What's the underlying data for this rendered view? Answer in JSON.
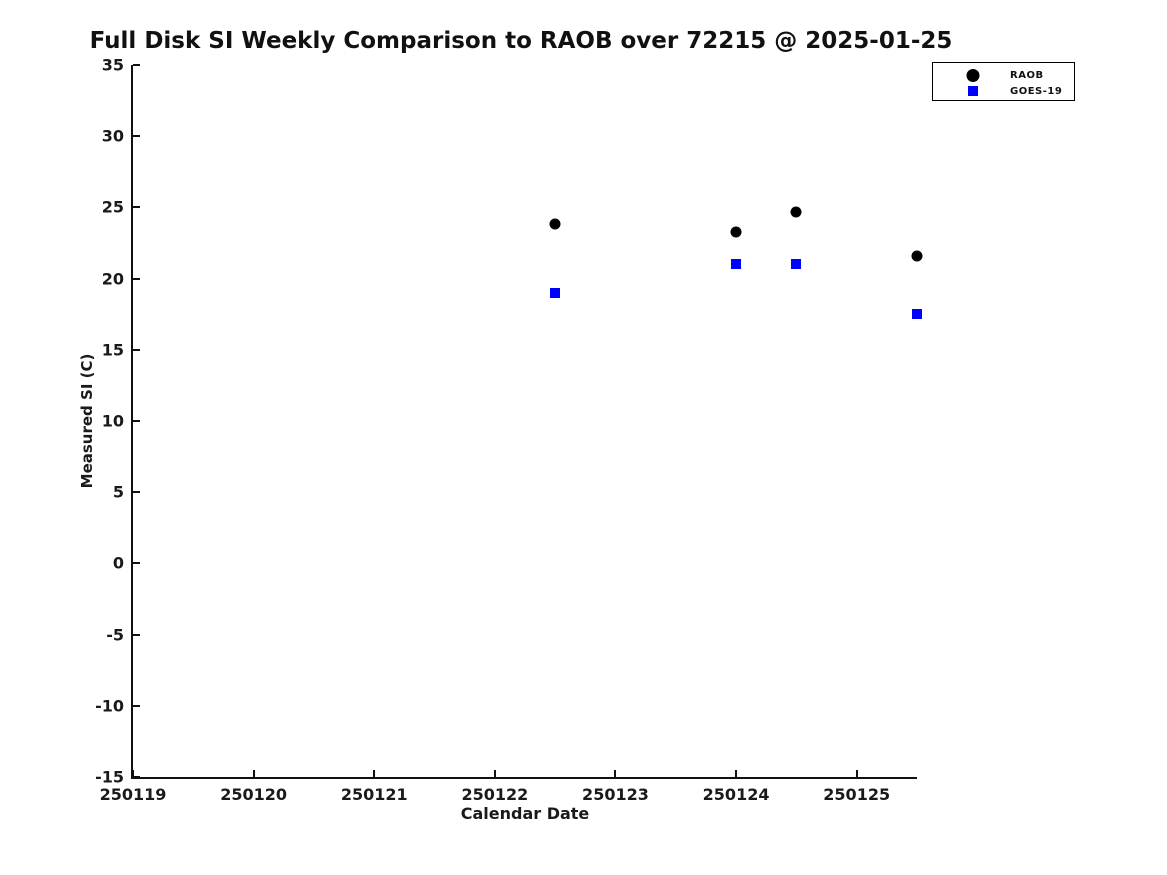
{
  "chart_data": {
    "type": "scatter",
    "title": "Full Disk SI Weekly Comparison to RAOB over 72215 @ 2025-01-25",
    "xlabel": "Calendar Date",
    "ylabel": "Measured SI (C)",
    "xlim": [
      250119,
      250125.5
    ],
    "ylim": [
      -15,
      35
    ],
    "x_ticks": [
      250119,
      250120,
      250121,
      250122,
      250123,
      250124,
      250125
    ],
    "y_ticks": [
      35,
      30,
      25,
      20,
      15,
      10,
      5,
      0,
      -5,
      -10,
      -15
    ],
    "grid": false,
    "legend_position": "top-right-outside-plot",
    "background_color": "#ffffff",
    "series": [
      {
        "name": "RAOB",
        "marker": "circle",
        "color": "#000000",
        "points": [
          [
            250122.5,
            23.8
          ],
          [
            250124.0,
            23.3
          ],
          [
            250124.5,
            24.7
          ],
          [
            250125.5,
            21.6
          ]
        ]
      },
      {
        "name": "GOES-19",
        "marker": "square",
        "color": "#0000ff",
        "points": [
          [
            250122.5,
            19.0
          ],
          [
            250124.0,
            21.0
          ],
          [
            250124.5,
            21.0
          ],
          [
            250125.5,
            17.5
          ]
        ]
      }
    ]
  }
}
